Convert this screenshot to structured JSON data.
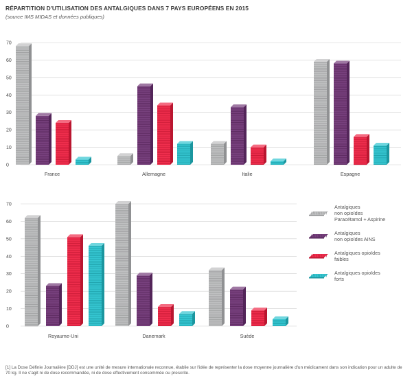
{
  "title": "RÉPARTITION D'UTILISATION DES ANTALGIQUES DANS 7 PAYS EUROPÉENS EN 2015",
  "subtitle": "(source IMS MIDAS et données publiques)",
  "footnote": "[1] La Dose Définie Journalière [DDJ] est une unité de mesure internationale reconnue, établie sur l'idée de représenter la dose moyenne journalière d'un médicament dans son indication pour un adulte de 70 kg. Il ne s'agit ni de dose recommandée, ni de dose effectivement consommée ou prescrite.",
  "colors": {
    "non_opioid_para": "#b9babc",
    "non_opioid_ains": "#6b2f72",
    "weak_opioid": "#ee1c3d",
    "strong_opioid": "#23c0cc"
  },
  "chart_data": [
    {
      "type": "bar",
      "title": "",
      "xlabel": "",
      "ylabel": "",
      "ylim": [
        0,
        70
      ],
      "yticks": [
        "0",
        "10",
        "20",
        "30",
        "40",
        "50",
        "60",
        "70"
      ],
      "grid": true,
      "categories": [
        "France",
        "Allemagne",
        "Italie",
        "Espagne"
      ],
      "series": [
        {
          "name": "Antalgiques non opioïdes Paracétamol + Aspirine",
          "values": [
            68,
            5,
            12,
            59
          ]
        },
        {
          "name": "Antalgiques non opioïdes AINS",
          "values": [
            28,
            45,
            33,
            58
          ]
        },
        {
          "name": "Antalgiques opioïdes faibles",
          "values": [
            24,
            34,
            10,
            16
          ]
        },
        {
          "name": "Antalgiques opioïdes forts",
          "values": [
            3,
            12,
            2,
            11
          ]
        }
      ]
    },
    {
      "type": "bar",
      "title": "",
      "xlabel": "",
      "ylabel": "",
      "ylim": [
        0,
        70
      ],
      "yticks": [
        "0",
        "10",
        "20",
        "30",
        "40",
        "50",
        "60",
        "70"
      ],
      "grid": true,
      "categories": [
        "Royaume-Uni",
        "Danemark",
        "Suède"
      ],
      "series": [
        {
          "name": "Antalgiques non opioïdes Paracétamol + Aspirine",
          "values": [
            62,
            70,
            32
          ]
        },
        {
          "name": "Antalgiques non opioïdes AINS",
          "values": [
            23,
            29,
            21
          ]
        },
        {
          "name": "Antalgiques opioïdes faibles",
          "values": [
            51,
            11,
            9
          ]
        },
        {
          "name": "Antalgiques opioïdes forts",
          "values": [
            46,
            7,
            4
          ]
        }
      ]
    }
  ],
  "legend": [
    {
      "lines": [
        "Antalgiques",
        "non opioïdes",
        "Paracétamol + Aspirine"
      ],
      "color_key": "non_opioid_para"
    },
    {
      "lines": [
        "Antalgiques",
        "non opioïdes AINS"
      ],
      "color_key": "non_opioid_ains"
    },
    {
      "lines": [
        "Antalgiques opioïdes",
        "faibles"
      ],
      "color_key": "weak_opioid"
    },
    {
      "lines": [
        "Antalgiques opioïdes",
        "forts"
      ],
      "color_key": "strong_opioid"
    }
  ]
}
